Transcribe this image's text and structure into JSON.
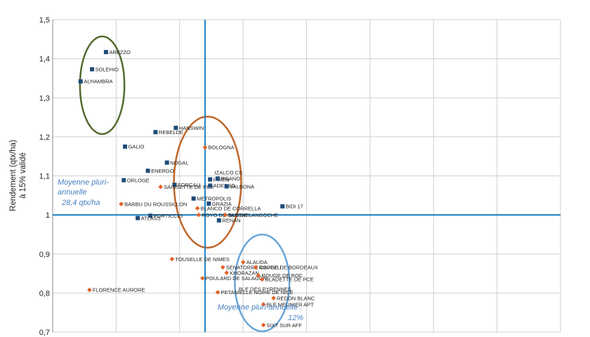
{
  "chart_data": {
    "type": "scatter",
    "ylabel": [
      "Rendement (qtx/ha)",
      "à 15% validé"
    ],
    "xlim": [
      0.88,
      1.28
    ],
    "ylim": [
      0.7,
      1.5
    ],
    "yticks": [
      "0,7",
      "0,8",
      "0,9",
      "1",
      "1,1",
      "1,2",
      "1,3",
      "1,4",
      "1,5"
    ],
    "grid": true,
    "reference_lines": {
      "x": 1.0,
      "y": 1.0
    },
    "annotations": [
      {
        "lines": [
          "Moyenne pluri-",
          "annuelle",
          "28,4 qtx/ha"
        ]
      },
      {
        "lines": [
          "Moyenne pluri-annuelle :",
          "12%"
        ]
      }
    ],
    "colors": {
      "square": "#1e4b7a",
      "diamond": "#e0622a",
      "axis_line": "#1a80c0",
      "ellipse_green": "#556b2f",
      "ellipse_orange": "#c0652a",
      "ellipse_blue": "#6aa5d8"
    },
    "points": [
      {
        "label": "AREZZO",
        "x": 0.922,
        "y": 1.417,
        "marker": "square"
      },
      {
        "label": "SOLEHIO",
        "x": 0.911,
        "y": 1.373,
        "marker": "square"
      },
      {
        "label": "ALHAMBRA",
        "x": 0.902,
        "y": 1.342,
        "marker": "square"
      },
      {
        "label": "REBELDE",
        "x": 0.961,
        "y": 1.212,
        "marker": "square"
      },
      {
        "label": "HANSWIN",
        "x": 0.977,
        "y": 1.223,
        "marker": "square"
      },
      {
        "label": "GALIO",
        "x": 0.937,
        "y": 1.175,
        "marker": "square"
      },
      {
        "label": "BOLOGNA",
        "x": 1.0,
        "y": 1.173,
        "marker": "diamond"
      },
      {
        "label": "NOGAL",
        "x": 0.97,
        "y": 1.134,
        "marker": "square"
      },
      {
        "label": "ENERGO",
        "x": 0.955,
        "y": 1.113,
        "marker": "square"
      },
      {
        "label": "IZALCO CS",
        "x": 1.005,
        "y": 1.109,
        "marker": "none"
      },
      {
        "label": "PIREN",
        "x": 1.004,
        "y": 1.091,
        "marker": "square"
      },
      {
        "label": "RGANO",
        "x": 1.01,
        "y": 1.093,
        "marker": "square"
      },
      {
        "label": "ORLOGE",
        "x": 0.936,
        "y": 1.089,
        "marker": "square"
      },
      {
        "label": "FORCALI",
        "x": 0.976,
        "y": 1.077,
        "marker": "square"
      },
      {
        "label": "SAISSETTE DE PCE",
        "x": 0.965,
        "y": 1.072,
        "marker": "diamond"
      },
      {
        "label": "ADESSO",
        "x": 1.004,
        "y": 1.075,
        "marker": "square"
      },
      {
        "label": "VALBONA",
        "x": 1.017,
        "y": 1.073,
        "marker": "square"
      },
      {
        "label": "METROPOLIS",
        "x": 0.991,
        "y": 1.042,
        "marker": "square"
      },
      {
        "label": "BARBU DU ROUSSILLON",
        "x": 0.934,
        "y": 1.028,
        "marker": "diamond"
      },
      {
        "label": "GRAZIA",
        "x": 1.003,
        "y": 1.029,
        "marker": "square"
      },
      {
        "label": "BLANCO DE CORRELLA",
        "x": 0.994,
        "y": 1.017,
        "marker": "diamond"
      },
      {
        "label": "BIDI 17",
        "x": 1.061,
        "y": 1.022,
        "marker": "square"
      },
      {
        "label": "ROYO DE SABENE",
        "x": 0.995,
        "y": 1.0,
        "marker": "diamond"
      },
      {
        "label": "BLE DE LANGOCHE",
        "x": 1.016,
        "y": 1.0,
        "marker": "diamond"
      },
      {
        "label": "PORTICCIO",
        "x": 0.957,
        "y": 0.998,
        "marker": "square"
      },
      {
        "label": "ATLASS",
        "x": 0.947,
        "y": 0.992,
        "marker": "square"
      },
      {
        "label": "RENAN",
        "x": 1.011,
        "y": 0.986,
        "marker": "square"
      },
      {
        "label": "TOUSELLE DE NIMES",
        "x": 0.974,
        "y": 0.887,
        "marker": "diamond"
      },
      {
        "label": "ALAUDA",
        "x": 1.03,
        "y": 0.879,
        "marker": "diamond"
      },
      {
        "label": "SENATORRE CAPELLI",
        "x": 1.014,
        "y": 0.866,
        "marker": "diamond"
      },
      {
        "label": "ROUGE DE BORDEAUX",
        "x": 1.04,
        "y": 0.866,
        "marker": "diamond"
      },
      {
        "label": "KHORAZAN",
        "x": 1.017,
        "y": 0.852,
        "marker": "diamond"
      },
      {
        "label": "ROUGE DE ROC",
        "x": 1.042,
        "y": 0.845,
        "marker": "diamond"
      },
      {
        "label": "POULARD DE SALAGON",
        "x": 0.998,
        "y": 0.838,
        "marker": "diamond"
      },
      {
        "label": "BLADETTE DE PCE",
        "x": 1.045,
        "y": 0.835,
        "marker": "diamond"
      },
      {
        "label": "BLE DES PYRENNES",
        "x": 1.024,
        "y": 0.81,
        "marker": "none"
      },
      {
        "label": "FLORENCE AURORE",
        "x": 0.909,
        "y": 0.808,
        "marker": "diamond"
      },
      {
        "label": "PETANIELLE NOIRE DE NICE",
        "x": 1.01,
        "y": 0.802,
        "marker": "diamond"
      },
      {
        "label": "REDON BLANC",
        "x": 1.054,
        "y": 0.787,
        "marker": "diamond"
      },
      {
        "label": "BLE MEUNIER APT",
        "x": 1.046,
        "y": 0.771,
        "marker": "diamond"
      },
      {
        "label": "SIXT SUR AFF",
        "x": 1.046,
        "y": 0.718,
        "marker": "diamond"
      }
    ],
    "groups": [
      {
        "color": "green",
        "cx": 0.919,
        "cy": 1.332,
        "rx": 0.0175,
        "ry": 0.125
      },
      {
        "color": "orange",
        "cx": 1.002,
        "cy": 1.084,
        "rx": 0.0265,
        "ry": 0.168
      },
      {
        "color": "blue",
        "cx": 1.045,
        "cy": 0.826,
        "rx": 0.0215,
        "ry": 0.124
      }
    ]
  }
}
